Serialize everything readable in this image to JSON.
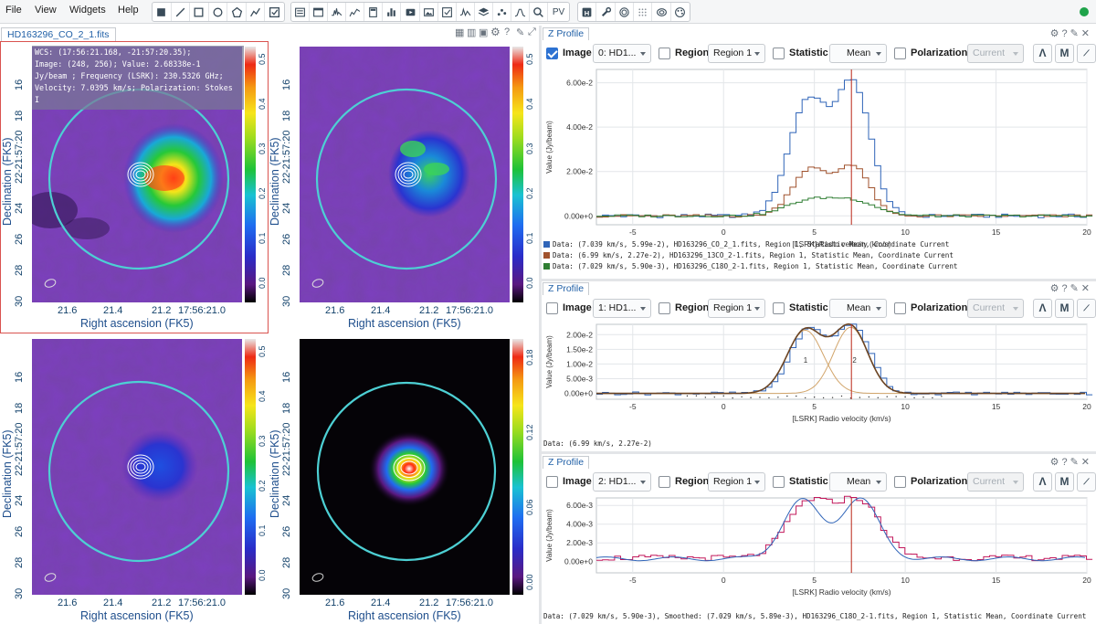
{
  "menu": [
    "File",
    "View",
    "Widgets",
    "Help"
  ],
  "toolbar": {
    "group1": [
      "rectangle-icon",
      "line-icon",
      "square-icon",
      "ellipse-icon",
      "polygon-icon",
      "polyline-icon",
      "checkbox-icon"
    ],
    "group2": [
      "list-icon",
      "window-icon",
      "spectrum-icon",
      "stats-icon",
      "calculator-icon",
      "histogram-icon",
      "video-icon",
      "image-icon",
      "checklist-icon",
      "profile-icon",
      "layers-icon",
      "scatter-icon",
      "fit-icon",
      "search-icon"
    ],
    "pv_label": "PV",
    "group3": [
      "h-icon",
      "wrench-icon",
      "ring-icon",
      "dots-icon",
      "contour-icon",
      "palette-icon"
    ]
  },
  "viewer": {
    "tab": "HD163296_CO_2_1.fits",
    "cursor_info": [
      "WCS: (17:56:21.168, -21:57:20.35);",
      "Image: (248, 256); Value:  2.68338e-1",
      "Jy/beam ; Frequency (LSRK): 230.5326 GHz;",
      "Velocity: 7.0395 km/s; Polarization: Stokes",
      "I"
    ],
    "y_ticks": [
      "16",
      "18",
      "-21:57:20",
      "22",
      "24",
      "26",
      "28",
      "30"
    ],
    "x_ticks": [
      "21.6",
      "21.4",
      "21.2",
      "17:56:21.0"
    ],
    "x_title": "Right ascension (FK5)",
    "y_title": "Declination (FK5)",
    "colorbar_ticks_a": [
      "0.5",
      "0.4",
      "0.3",
      "0.2",
      "0.1",
      "0.0"
    ],
    "colorbar_ticks_b": [
      "0.18",
      "0.12",
      "0.06",
      "0.00"
    ]
  },
  "profiles": [
    {
      "tab": "Z Profile",
      "image_checked": true,
      "image_value": "0: HD1...",
      "region_value": "Region 1",
      "statistic_value": "Mean",
      "polarization_value": "Current",
      "labels": {
        "image": "Image",
        "region": "Region",
        "statistic": "Statistic",
        "polarization": "Polarization"
      },
      "y_ticks": [
        "6.00e-2",
        "4.00e-2",
        "2.00e-2",
        "0.00e+0"
      ],
      "y_vals": [
        0.06,
        0.04,
        0.02,
        0.0
      ],
      "ylim": [
        -0.004,
        0.066
      ],
      "y_title": "Value (Jy/beam)",
      "x_ticks": [
        "-5",
        "0",
        "5",
        "10",
        "15",
        "20"
      ],
      "x_title": "[LSRK] Radio velocity (km/s)",
      "legend": [
        {
          "color": "#2f64b8",
          "text": "Data: (7.039 km/s, 5.99e-2), HD163296_CO_2_1.fits, Region 1, Statistic Mean, Coordinate Current"
        },
        {
          "color": "#a0522d",
          "text": "Data: (6.99 km/s, 2.27e-2), HD163296_13CO_2-1.fits, Region 1, Statistic Mean, Coordinate Current"
        },
        {
          "color": "#2e7d32",
          "text": "Data: (7.029 km/s, 5.90e-3), HD163296_C18O_2-1.fits, Region 1, Statistic Mean, Coordinate Current"
        }
      ]
    },
    {
      "tab": "Z Profile",
      "image_checked": false,
      "image_value": "1: HD1...",
      "region_value": "Region 1",
      "statistic_value": "Mean",
      "polarization_value": "Current",
      "labels": {
        "image": "Image",
        "region": "Region",
        "statistic": "Statistic",
        "polarization": "Polarization"
      },
      "y_ticks": [
        "2.00e-2",
        "1.50e-2",
        "1.00e-2",
        "5.00e-3",
        "0.00e+0"
      ],
      "y_vals": [
        0.02,
        0.015,
        0.01,
        0.005,
        0.0
      ],
      "ylim": [
        -0.002,
        0.0235
      ],
      "y_title": "Value (Jy/beam)",
      "x_ticks": [
        "-5",
        "0",
        "5",
        "10",
        "15",
        "20"
      ],
      "x_title": "[LSRK] Radio velocity (km/s)",
      "fit_labels": [
        "1",
        "2"
      ],
      "status": "Data: (6.99 km/s, 2.27e-2)"
    },
    {
      "tab": "Z Profile",
      "image_checked": false,
      "image_value": "2: HD1...",
      "region_value": "Region 1",
      "statistic_value": "Mean",
      "polarization_value": "Current",
      "labels": {
        "image": "Image",
        "region": "Region",
        "statistic": "Statistic",
        "polarization": "Polarization"
      },
      "y_ticks": [
        "6.00e-3",
        "4.00e-3",
        "2.00e-3",
        "0.00e+0"
      ],
      "y_vals": [
        0.006,
        0.004,
        0.002,
        0.0
      ],
      "ylim": [
        -0.0012,
        0.0068
      ],
      "y_title": "Value (Jy/beam)",
      "x_ticks": [
        "-5",
        "0",
        "5",
        "10",
        "15",
        "20"
      ],
      "x_title": "[LSRK] Radio velocity (km/s)",
      "status": "Data: (7.029 km/s, 5.90e-3), Smoothed: (7.029 km/s, 5.89e-3), HD163296_C18O_2-1.fits, Region 1, Statistic Mean, Coordinate Current"
    }
  ],
  "colors": {
    "accent": "#2d72d2",
    "cursor_line": "#c0392b",
    "region": "#4dd0d4"
  }
}
